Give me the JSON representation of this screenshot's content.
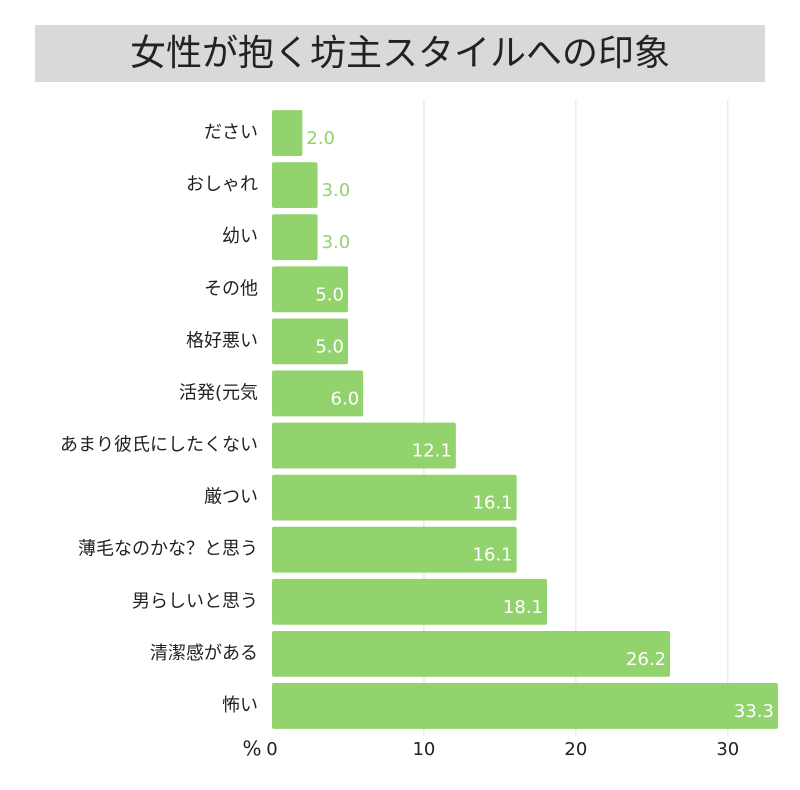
{
  "chart_data": {
    "type": "bar",
    "orientation": "horizontal",
    "title": "女性が抱く坊主スタイルへの印象",
    "x_label": "%",
    "categories": [
      "ださい",
      "おしゃれ",
      "幼い",
      "その他",
      "格好悪い",
      "活発(元気",
      "あまり彼氏にしたくない",
      "厳つい",
      "薄毛なのかな？と思う",
      "男らしいと思う",
      "清潔感がある",
      "怖い"
    ],
    "values": [
      2,
      3,
      3,
      5,
      5,
      6,
      12.1,
      16.1,
      16.1,
      18.1,
      26.2,
      33.3
    ],
    "value_labels": [
      "2.0",
      "3.0",
      "3.0",
      "5.0",
      "5.0",
      "6.0",
      "12.1",
      "16.1",
      "16.1",
      "18.1",
      "26.2",
      "33.3"
    ],
    "color": "#92d36e",
    "xlim": [
      0,
      33.5
    ],
    "xticks": [
      0,
      10,
      20,
      30
    ],
    "grid": true
  }
}
